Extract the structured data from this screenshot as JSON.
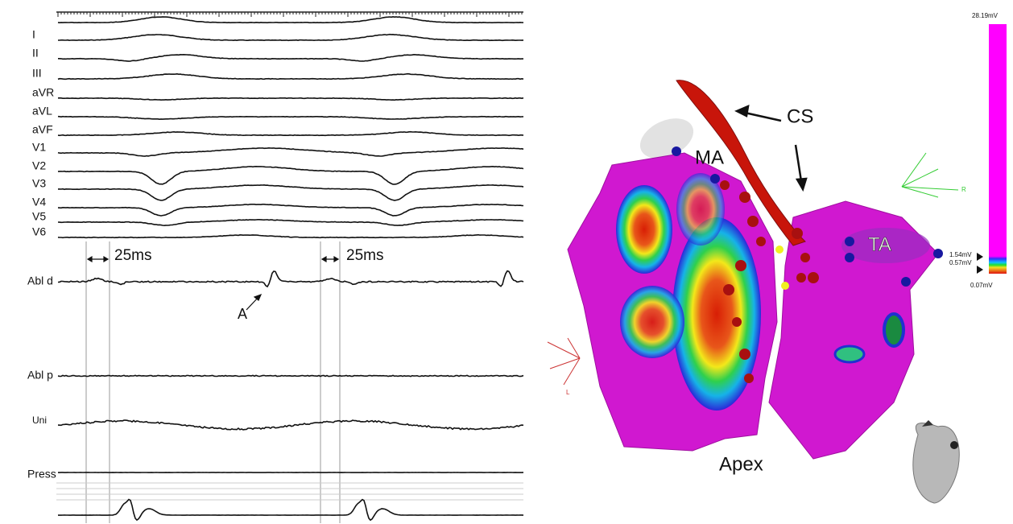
{
  "leads": [
    "I",
    "II",
    "III",
    "aVR",
    "aVL",
    "aVF",
    "V1",
    "V2",
    "V3",
    "V4",
    "V5",
    "V6"
  ],
  "channels": [
    "Abl d",
    "Abl p",
    "Uni",
    "Press"
  ],
  "annotations": {
    "interval_1": "25ms",
    "interval_2": "25ms",
    "activation": "A"
  },
  "map": {
    "labels": {
      "cs": "CS",
      "ma": "MA",
      "ta": "TA",
      "apex": "Apex"
    },
    "colorbar": {
      "max": "28.19mV",
      "upper": "1.54mV",
      "lower": "0.57mV",
      "min": "0.07mV"
    },
    "axes": {
      "left": "L",
      "right": "R"
    }
  }
}
